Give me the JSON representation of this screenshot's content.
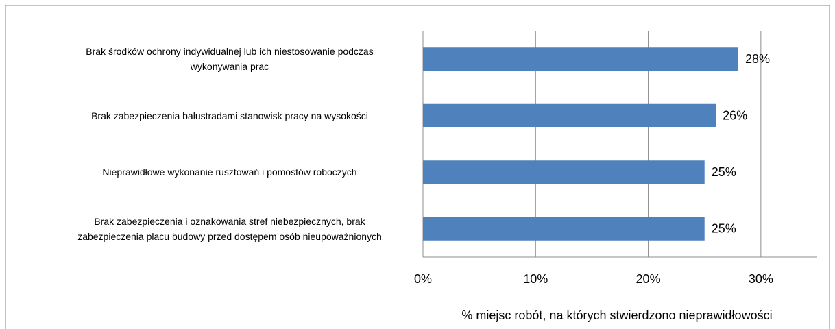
{
  "chart_data": {
    "type": "bar",
    "orientation": "horizontal",
    "categories": [
      "Brak środków ochrony indywidualnej lub ich niestosowanie podczas wykonywania prac",
      "Brak zabezpieczenia balustradami stanowisk pracy na wysokości",
      "Nieprawidłowe wykonanie rusztowań i pomostów roboczych",
      "Brak zabezpieczenia i oznakowania stref niebezpiecznych, brak zabezpieczenia placu budowy przed dostępem osób nieupoważnionych"
    ],
    "values": [
      28,
      26,
      25,
      25
    ],
    "value_labels": [
      "28%",
      "26%",
      "25%",
      "25%"
    ],
    "color": "#4f81bd",
    "xlim": [
      0,
      35
    ],
    "xticks": [
      {
        "value": 0,
        "label": "0%"
      },
      {
        "value": 10,
        "label": "10%"
      },
      {
        "value": 20,
        "label": "20%"
      },
      {
        "value": 30,
        "label": "30%"
      }
    ],
    "x_label": "% miejsc robót, na których stwierdzono nieprawidłowości",
    "grid": true
  }
}
